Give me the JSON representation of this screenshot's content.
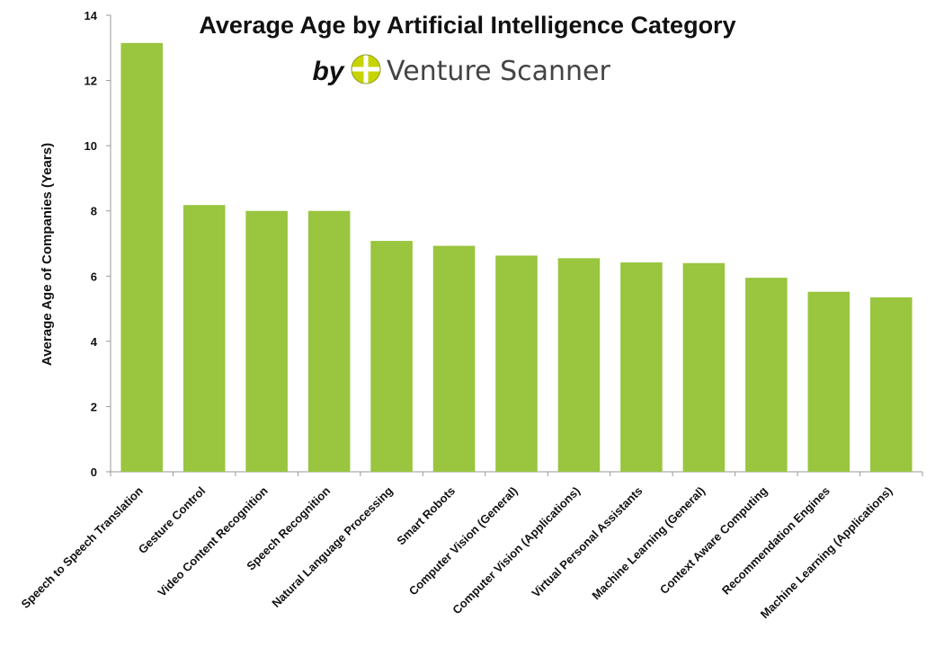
{
  "chart_data": {
    "type": "bar",
    "title": "Average Age by Artificial Intelligence Category",
    "ylabel": "Average Age of Companies (Years)",
    "xlabel": "",
    "ylim": [
      0,
      14
    ],
    "yticks": [
      "0",
      "2",
      "4",
      "6",
      "8",
      "10",
      "12",
      "14"
    ],
    "grid": false,
    "bar_color": "#99c53f",
    "categories": [
      "Speech to Speech Translation",
      "Gesture Control",
      "Video Content Recognition",
      "Speech Recognition",
      "Natural Language Processing",
      "Smart Robots",
      "Computer Vision (General)",
      "Computer Vision (Applications)",
      "Virtual Personal Assistants",
      "Machine Learning (General)",
      "Context Aware Computing",
      "Recommendation Engines",
      "Machine Learning (Applications)"
    ],
    "values": [
      13.15,
      8.18,
      8.0,
      8.0,
      7.08,
      6.93,
      6.63,
      6.55,
      6.42,
      6.4,
      5.95,
      5.52,
      5.35
    ]
  },
  "branding": {
    "by": "by",
    "name": "Venture Scanner",
    "logo_colors": [
      "#c8d400",
      "#8a9a1e"
    ]
  }
}
